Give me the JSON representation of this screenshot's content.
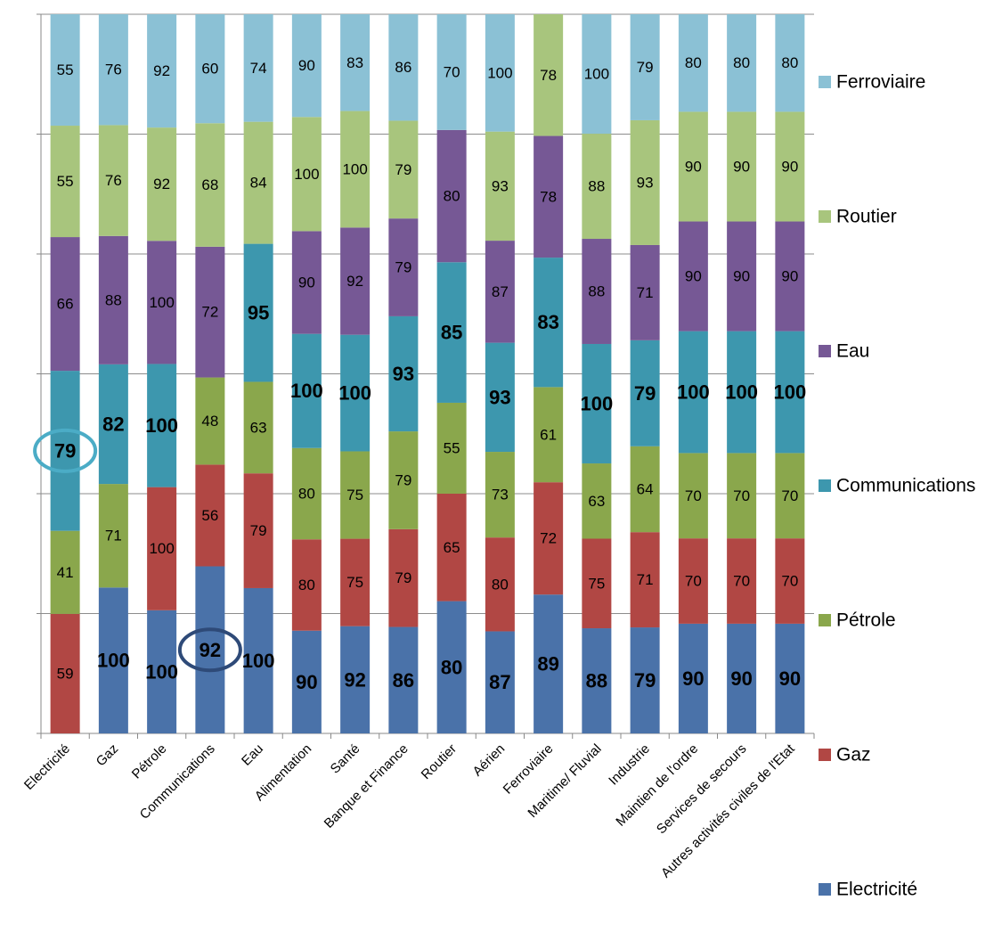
{
  "chart_data": {
    "type": "bar",
    "stacked": true,
    "normalized": true,
    "categories": [
      "Electricité",
      "Gaz",
      "Pétrole",
      "Communications",
      "Eau",
      "Alimentation",
      "Santé",
      "Banque et Finance",
      "Routier",
      "Aérien",
      "Ferroviaire",
      "Maritime/ Fluvial",
      "Industrie",
      "Maintien de l'ordre",
      "Services de secours",
      "Autres activités civiles de l'Etat"
    ],
    "series": [
      {
        "name": "Electricité",
        "color": "#4a72a9",
        "values": [
          null,
          100,
          100,
          92,
          100,
          90,
          92,
          86,
          80,
          87,
          89,
          88,
          79,
          90,
          90,
          90
        ],
        "bold": [
          false,
          true,
          true,
          true,
          true,
          true,
          true,
          true,
          true,
          true,
          true,
          true,
          true,
          true,
          true,
          true
        ]
      },
      {
        "name": "Gaz",
        "color": "#b14744",
        "values": [
          59,
          null,
          100,
          56,
          79,
          80,
          75,
          79,
          65,
          80,
          72,
          75,
          71,
          70,
          70,
          70
        ],
        "bold": [
          false,
          false,
          false,
          false,
          false,
          false,
          false,
          false,
          false,
          false,
          false,
          false,
          false,
          false,
          false,
          false
        ]
      },
      {
        "name": "Pétrole",
        "color": "#8aa74c",
        "values": [
          41,
          71,
          null,
          48,
          63,
          80,
          75,
          79,
          55,
          73,
          61,
          63,
          64,
          70,
          70,
          70
        ],
        "bold": [
          false,
          false,
          false,
          false,
          false,
          false,
          false,
          false,
          false,
          false,
          false,
          false,
          false,
          false,
          false,
          false
        ]
      },
      {
        "name": "Communications",
        "color": "#3d97ae",
        "values": [
          79,
          82,
          100,
          null,
          95,
          100,
          100,
          93,
          85,
          93,
          83,
          100,
          79,
          100,
          100,
          100
        ],
        "bold": [
          true,
          true,
          true,
          false,
          true,
          true,
          true,
          true,
          true,
          true,
          true,
          true,
          true,
          true,
          true,
          true
        ]
      },
      {
        "name": "Eau",
        "color": "#765895",
        "values": [
          66,
          88,
          100,
          72,
          null,
          90,
          92,
          79,
          80,
          87,
          78,
          88,
          71,
          90,
          90,
          90
        ],
        "bold": [
          false,
          false,
          false,
          false,
          false,
          false,
          false,
          false,
          false,
          false,
          false,
          false,
          false,
          false,
          false,
          false
        ]
      },
      {
        "name": "Routier",
        "color": "#a8c57d",
        "values": [
          55,
          76,
          92,
          68,
          84,
          100,
          100,
          79,
          null,
          93,
          78,
          88,
          93,
          90,
          90,
          90
        ],
        "bold": [
          false,
          false,
          false,
          false,
          false,
          false,
          false,
          false,
          false,
          false,
          false,
          false,
          false,
          false,
          false,
          false
        ]
      },
      {
        "name": "Ferroviaire",
        "color": "#8bc1d5",
        "values": [
          55,
          76,
          92,
          60,
          74,
          90,
          83,
          86,
          70,
          100,
          null,
          100,
          79,
          80,
          80,
          80
        ],
        "bold": [
          false,
          false,
          false,
          false,
          false,
          false,
          false,
          false,
          false,
          false,
          false,
          false,
          false,
          false,
          false,
          false
        ]
      }
    ],
    "highlights": [
      {
        "category": "Electricité",
        "series": "Communications",
        "color": "#4bacc6"
      },
      {
        "category": "Communications",
        "series": "Electricité",
        "color": "#2e4a78"
      }
    ],
    "legend_position": "right",
    "grid": true
  }
}
